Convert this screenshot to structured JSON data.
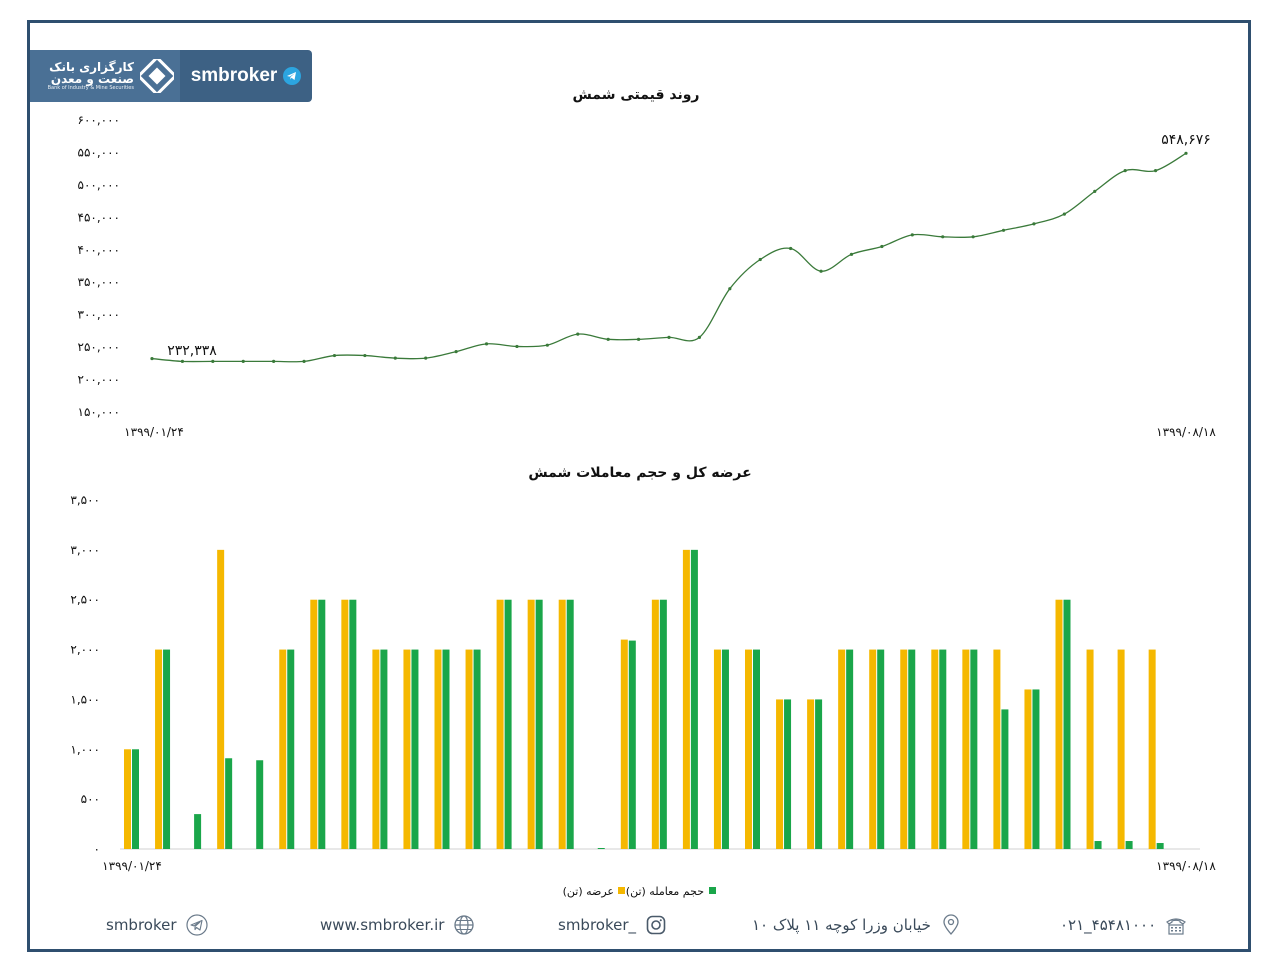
{
  "logo": {
    "fa_line1": "کارگزاری بانک",
    "fa_line2": "صنعت و معدن",
    "en_line": "Bank of Industry & Mine Securities",
    "brand": "smbroker",
    "brand_icon": "telegram-icon"
  },
  "chart_data": [
    {
      "type": "line",
      "title": "روند قیمتی شمش",
      "x_start_label": "۱۳۹۹/۰۱/۲۴",
      "x_end_label": "۱۳۹۹/۰۸/۱۸",
      "ylim": [
        150000,
        600000
      ],
      "yticks": [
        "۱۵۰,۰۰۰",
        "۲۰۰,۰۰۰",
        "۲۵۰,۰۰۰",
        "۳۰۰,۰۰۰",
        "۳۵۰,۰۰۰",
        "۴۰۰,۰۰۰",
        "۴۵۰,۰۰۰",
        "۵۰۰,۰۰۰",
        "۵۵۰,۰۰۰",
        "۶۰۰,۰۰۰"
      ],
      "first_value_label": "۲۳۲,۳۳۸",
      "last_value_label": "۵۴۸,۶۷۶",
      "values": [
        232338,
        228000,
        228000,
        228000,
        228000,
        228000,
        237000,
        237000,
        233000,
        233000,
        243000,
        255000,
        251000,
        253000,
        270000,
        262000,
        262000,
        265000,
        265000,
        340000,
        385000,
        402000,
        367000,
        393000,
        405000,
        423000,
        420000,
        420000,
        430000,
        440000,
        455000,
        490000,
        522000,
        522000,
        548676
      ],
      "line_color": "#3a7a3a",
      "grid": false
    },
    {
      "type": "bar",
      "title": "عرضه کل و حجم معاملات شمش",
      "x_start_label": "۱۳۹۹/۰۱/۲۴",
      "x_end_label": "۱۳۹۹/۰۸/۱۸",
      "ylim": [
        0,
        3500
      ],
      "yticks": [
        "۰",
        "۵۰۰",
        "۱,۰۰۰",
        "۱,۵۰۰",
        "۲,۰۰۰",
        "۲,۵۰۰",
        "۳,۰۰۰",
        "۳,۵۰۰"
      ],
      "legend_position": "bottom-center",
      "series": [
        {
          "name": "عرضه (تن)",
          "color": "#f5b800",
          "values": [
            1000,
            2000,
            0,
            3000,
            0,
            2000,
            2500,
            2500,
            2000,
            2000,
            2000,
            2000,
            2500,
            2500,
            2500,
            0,
            2100,
            2500,
            3000,
            2000,
            2000,
            1500,
            1500,
            2000,
            2000,
            2000,
            2000,
            2000,
            2000,
            1600,
            2500,
            2000,
            2000,
            2000
          ]
        },
        {
          "name": "حجم معامله (تن)",
          "color": "#1aa64a",
          "values": [
            1000,
            2000,
            350,
            910,
            890,
            2000,
            2500,
            2500,
            2000,
            2000,
            2000,
            2000,
            2500,
            2500,
            2500,
            10,
            2090,
            2500,
            3000,
            2000,
            2000,
            1500,
            1500,
            2000,
            2000,
            2000,
            2000,
            2000,
            1400,
            1600,
            2500,
            80,
            80,
            60
          ]
        }
      ]
    }
  ],
  "footer": {
    "phone": "۰۲۱_۴۵۴۸۱۰۰۰",
    "address": "خیابان وزرا کوچه ۱۱ پلاک ۱۰",
    "instagram": "smbroker_",
    "website": "www.smbroker.ir",
    "telegram": "smbroker"
  }
}
